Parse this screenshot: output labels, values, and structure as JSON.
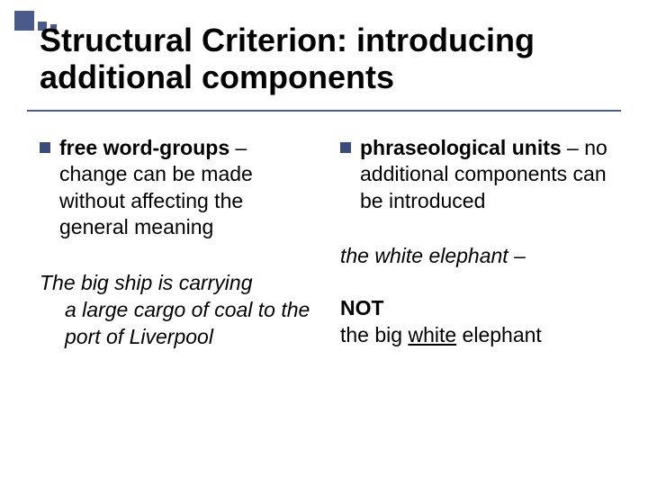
{
  "colors": {
    "accent": "#4a5a8a",
    "text": "#000000",
    "background": "#ffffff"
  },
  "typography": {
    "title_fontsize": 36,
    "body_fontsize": 23,
    "font_family": "Arial"
  },
  "title": "Structural Criterion: introducing additional components",
  "left": {
    "bullet_lead": "free word-groups",
    "bullet_rest": " – change can be made without affecting the general meaning",
    "example_line1": "The big ship is carrying",
    "example_line2": "a large cargo of coal to the port of Liverpool"
  },
  "right": {
    "bullet_lead": "phraseological units",
    "bullet_rest": " – no additional components can be introduced",
    "example_line1": "the white elephant –",
    "not_label": "NOT",
    "not_phrase_pre": "the big ",
    "not_phrase_u": "white",
    "not_phrase_post": " elephant"
  }
}
